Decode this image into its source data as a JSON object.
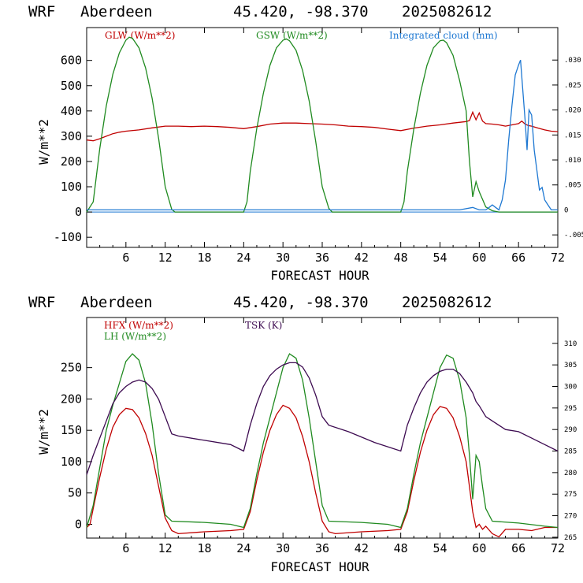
{
  "header": {
    "model": "WRF",
    "site": "Aberdeen",
    "coords": "45.420, -98.370",
    "run": "2025082612"
  },
  "colors": {
    "red": "#c00000",
    "green": "#1f8a1f",
    "blue": "#1e78d2",
    "purple": "#3c0a50"
  },
  "chart_data": [
    {
      "type": "line",
      "xlabel": "FORECAST HOUR",
      "ylabel": "W/m**2",
      "xlim": [
        0,
        72
      ],
      "ylim": [
        -140,
        730
      ],
      "x_ticks": [
        6,
        12,
        18,
        24,
        30,
        36,
        42,
        48,
        54,
        60,
        66,
        72
      ],
      "y_ticks": [
        -100,
        0,
        100,
        200,
        300,
        400,
        500,
        600
      ],
      "y_tick_labels": [
        "-100",
        "0",
        "100",
        "200",
        "300",
        "400",
        "500",
        "600"
      ],
      "y2lim": [
        -0.0075,
        0.0365
      ],
      "y2_ticks": [
        -0.005,
        0,
        0.005,
        0.01,
        0.015,
        0.02,
        0.025,
        0.03
      ],
      "y2_tick_labels": [
        "-.005",
        "0",
        ".005",
        ".010",
        ".015",
        ".020",
        ".025",
        ".030"
      ],
      "series": [
        {
          "name": "GLW (W/m**2)",
          "color_key": "red",
          "axis": "left",
          "x": [
            0,
            1,
            2,
            3,
            4,
            5,
            6,
            8,
            10,
            12,
            14,
            16,
            18,
            20,
            22,
            24,
            26,
            28,
            30,
            32,
            34,
            36,
            38,
            40,
            42,
            44,
            46,
            48,
            50,
            52,
            54,
            56,
            58,
            58.5,
            59,
            59.5,
            60,
            60.5,
            61,
            62,
            63,
            64,
            65,
            66,
            66.5,
            67,
            67.5,
            68,
            69,
            70,
            71,
            72
          ],
          "y": [
            285,
            282,
            290,
            300,
            310,
            316,
            320,
            325,
            333,
            340,
            340,
            338,
            340,
            338,
            335,
            330,
            338,
            348,
            352,
            352,
            350,
            348,
            345,
            340,
            338,
            335,
            328,
            322,
            332,
            340,
            345,
            352,
            358,
            362,
            395,
            365,
            392,
            360,
            350,
            348,
            345,
            340,
            345,
            350,
            360,
            348,
            342,
            340,
            332,
            325,
            320,
            318
          ]
        },
        {
          "name": "GSW (W/m**2)",
          "color_key": "green",
          "axis": "left",
          "x": [
            0,
            1,
            2,
            3,
            4,
            5,
            6,
            6.5,
            7,
            8,
            9,
            10,
            11,
            12,
            13,
            13.5,
            24,
            24.5,
            25,
            26,
            27,
            28,
            29,
            30,
            30.5,
            31,
            32,
            33,
            34,
            35,
            36,
            37,
            37.5,
            48,
            48.5,
            49,
            50,
            51,
            52,
            53,
            54,
            54.5,
            55,
            56,
            57,
            58,
            58.5,
            59,
            59.5,
            60,
            60.5,
            61,
            62,
            63,
            64,
            72
          ],
          "y": [
            0,
            40,
            250,
            420,
            545,
            630,
            680,
            692,
            688,
            650,
            570,
            450,
            290,
            100,
            10,
            0,
            0,
            40,
            160,
            330,
            470,
            580,
            650,
            680,
            685,
            678,
            640,
            560,
            440,
            280,
            100,
            15,
            0,
            0,
            40,
            160,
            330,
            470,
            580,
            650,
            678,
            680,
            670,
            620,
            520,
            400,
            200,
            60,
            120,
            80,
            50,
            20,
            5,
            0,
            0,
            0
          ]
        },
        {
          "name": "Integrated cloud (mm)",
          "color_key": "blue",
          "axis": "right",
          "x": [
            0,
            57,
            59,
            60,
            61,
            61.5,
            62,
            62.5,
            63,
            63.5,
            64,
            64.5,
            65,
            65.5,
            66,
            66.3,
            66.6,
            67,
            67.3,
            67.6,
            68,
            68.4,
            68.8,
            69.2,
            69.6,
            70,
            70.5,
            71,
            72
          ],
          "y": [
            0,
            0,
            0.0005,
            0,
            0,
            0.0005,
            0.001,
            0.0005,
            0,
            0.002,
            0.006,
            0.014,
            0.021,
            0.027,
            0.029,
            0.03,
            0.025,
            0.018,
            0.012,
            0.02,
            0.019,
            0.012,
            0.008,
            0.004,
            0.0045,
            0.002,
            0.001,
            0,
            0
          ]
        }
      ]
    },
    {
      "type": "line",
      "xlabel": "FORECAST HOUR",
      "ylabel": "W/m**2",
      "xlim": [
        0,
        72
      ],
      "ylim": [
        -22,
        330
      ],
      "x_ticks": [
        6,
        12,
        18,
        24,
        30,
        36,
        42,
        48,
        54,
        60,
        66,
        72
      ],
      "y_ticks": [
        0,
        50,
        100,
        150,
        200,
        250
      ],
      "y_tick_labels": [
        "0",
        "50",
        "100",
        "150",
        "200",
        "250"
      ],
      "y2lim": [
        264.8,
        316
      ],
      "y2_ticks": [
        265,
        270,
        275,
        280,
        285,
        290,
        295,
        300,
        305,
        310
      ],
      "y2_tick_labels": [
        "265",
        "270",
        "275",
        "280",
        "285",
        "290",
        "295",
        "300",
        "305",
        "310"
      ],
      "series": [
        {
          "name": "HFX (W/m**2)",
          "color_key": "red",
          "axis": "left",
          "x": [
            0,
            0.5,
            1,
            2,
            3,
            4,
            5,
            6,
            7,
            8,
            9,
            10,
            11,
            12,
            13,
            14,
            18,
            22,
            24,
            25,
            26,
            27,
            28,
            29,
            30,
            31,
            32,
            33,
            34,
            35,
            36,
            37,
            38,
            42,
            46,
            48,
            49,
            50,
            51,
            52,
            53,
            54,
            55,
            56,
            57,
            58,
            58.5,
            59,
            59.5,
            60,
            60.5,
            61,
            62,
            63,
            64,
            66,
            68,
            70,
            72
          ],
          "y": [
            -5,
            0,
            25,
            75,
            120,
            155,
            175,
            185,
            183,
            170,
            145,
            110,
            60,
            10,
            -10,
            -15,
            -12,
            -10,
            -8,
            20,
            70,
            115,
            150,
            175,
            190,
            185,
            170,
            140,
            100,
            50,
            5,
            -12,
            -15,
            -12,
            -10,
            -8,
            20,
            70,
            115,
            150,
            175,
            188,
            185,
            170,
            140,
            100,
            60,
            20,
            -5,
            0,
            -8,
            -3,
            -15,
            -20,
            -8,
            -8,
            -10,
            -5,
            -5
          ]
        },
        {
          "name": "LH (W/m**2)",
          "color_key": "green",
          "axis": "left",
          "x": [
            0,
            1,
            2,
            3,
            4,
            5,
            6,
            7,
            8,
            9,
            10,
            11,
            12,
            13,
            18,
            22,
            24,
            25,
            26,
            27,
            28,
            29,
            30,
            31,
            32,
            33,
            34,
            35,
            36,
            37,
            42,
            46,
            48,
            49,
            50,
            51,
            52,
            53,
            54,
            55,
            56,
            57,
            58,
            58.5,
            59,
            59.5,
            60,
            60.5,
            61,
            62,
            66,
            70,
            72
          ],
          "y": [
            -5,
            30,
            90,
            150,
            190,
            225,
            260,
            272,
            262,
            225,
            160,
            80,
            15,
            5,
            3,
            0,
            -5,
            25,
            80,
            130,
            170,
            210,
            250,
            272,
            265,
            230,
            170,
            100,
            30,
            5,
            3,
            0,
            -5,
            25,
            80,
            130,
            170,
            210,
            250,
            270,
            265,
            230,
            170,
            110,
            40,
            110,
            100,
            60,
            25,
            5,
            2,
            -3,
            -5
          ]
        },
        {
          "name": "TSK (K)",
          "color_key": "purple",
          "axis": "right",
          "x": [
            0,
            1,
            2,
            3,
            4,
            5,
            6,
            7,
            8,
            9,
            10,
            11,
            12,
            13,
            14,
            18,
            22,
            24,
            25,
            26,
            27,
            28,
            29,
            30,
            31,
            32,
            33,
            34,
            35,
            36,
            37,
            40,
            44,
            48,
            49,
            50,
            51,
            52,
            53,
            54,
            55,
            56,
            57,
            58,
            59,
            59.5,
            60,
            61,
            62,
            64,
            66,
            68,
            70,
            72
          ],
          "y": [
            279.5,
            284,
            288,
            292,
            296,
            298.5,
            300,
            301,
            301.5,
            301,
            299.5,
            297,
            293,
            289,
            288.5,
            287.5,
            286.5,
            285,
            291,
            296,
            300,
            302.5,
            304,
            305,
            305.5,
            305.5,
            304.5,
            302,
            298,
            293,
            291,
            289.5,
            287,
            285,
            291,
            295,
            298.5,
            301,
            302.5,
            303.5,
            304,
            304,
            303,
            301,
            298.5,
            296.5,
            295.5,
            293,
            292,
            290,
            289.5,
            288,
            286.5,
            285
          ]
        }
      ]
    }
  ]
}
